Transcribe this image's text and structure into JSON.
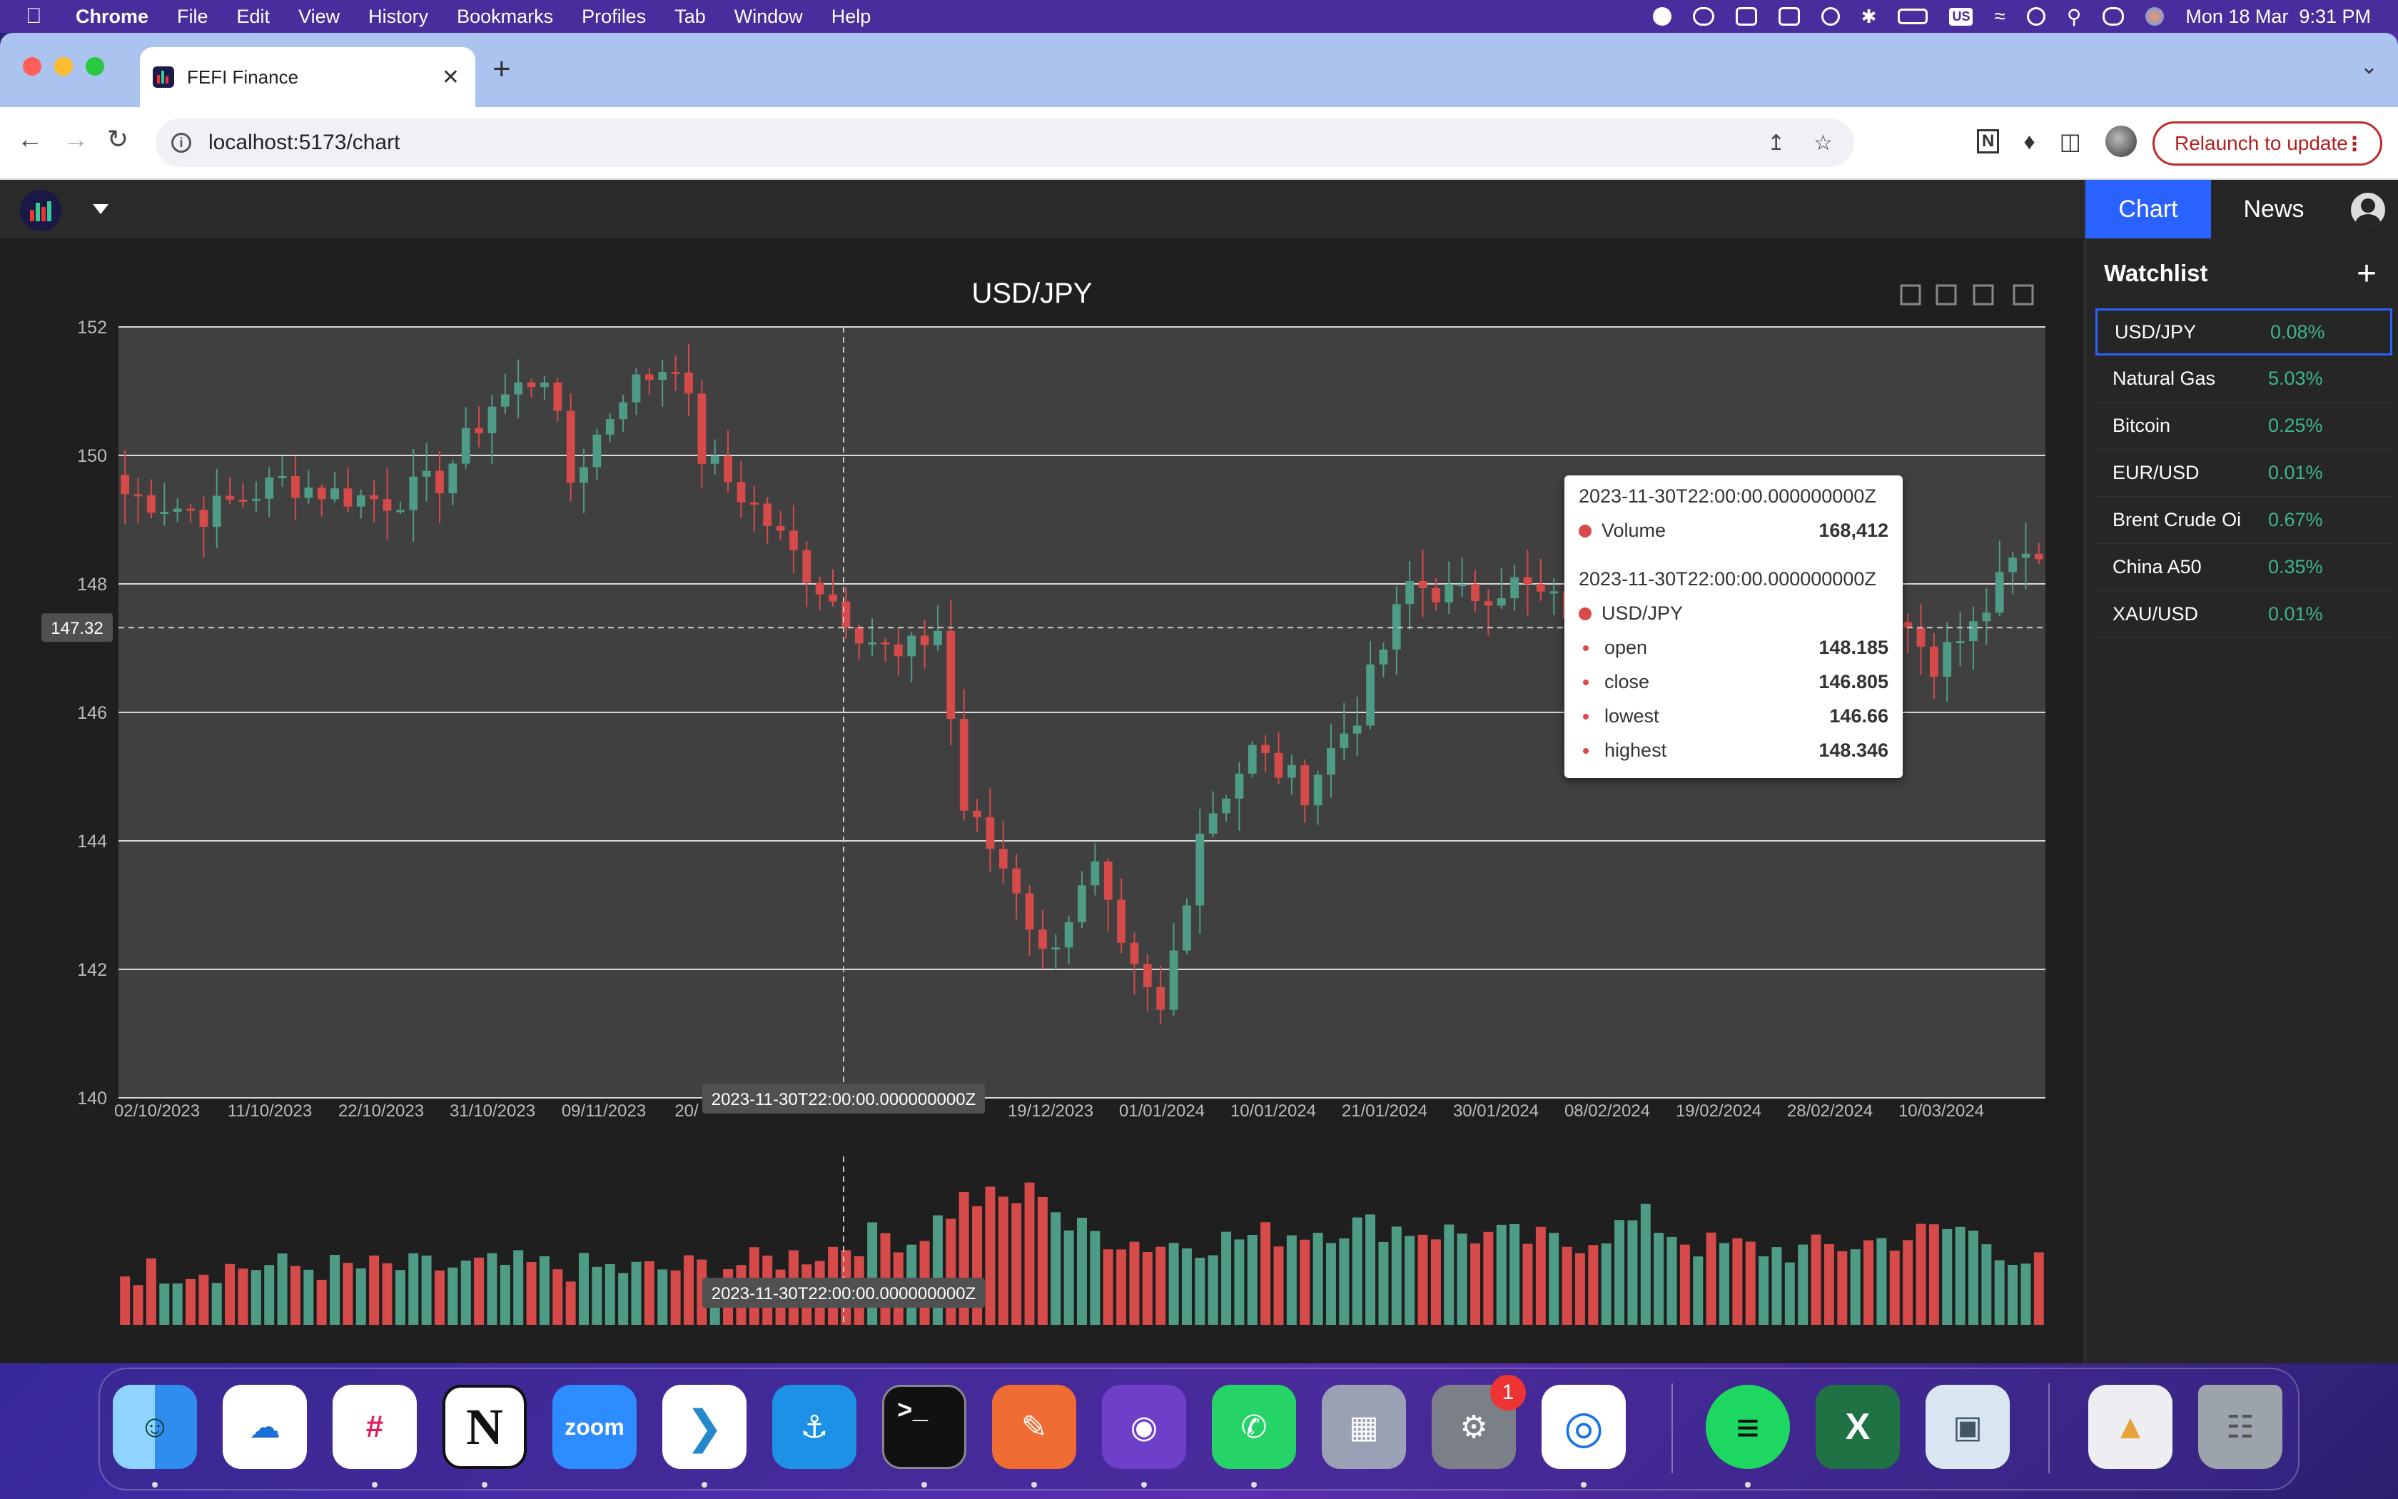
{
  "menubar": {
    "app": "Chrome",
    "items": [
      "File",
      "Edit",
      "View",
      "History",
      "Bookmarks",
      "Profiles",
      "Tab",
      "Window",
      "Help"
    ],
    "datetime": "Mon 18 Mar  9:31 PM",
    "input_source": "US"
  },
  "browser": {
    "tab_title": "FEFI Finance",
    "url": "localhost:5173/chart",
    "relaunch_label": "Relaunch to update"
  },
  "app": {
    "tabs": [
      {
        "label": "Chart",
        "active": true
      },
      {
        "label": "News",
        "active": false
      }
    ],
    "watchlist": {
      "title": "Watchlist",
      "add_label": "+",
      "items": [
        {
          "name": "USD/JPY",
          "change": "0.08%",
          "selected": true
        },
        {
          "name": "Natural Gas",
          "change": "5.03%"
        },
        {
          "name": "Bitcoin",
          "change": "0.25%"
        },
        {
          "name": "EUR/USD",
          "change": "0.01%"
        },
        {
          "name": "Brent Crude Oi",
          "change": "0.67%"
        },
        {
          "name": "China A50",
          "change": "0.35%"
        },
        {
          "name": "XAU/USD",
          "change": "0.01%"
        }
      ]
    }
  },
  "tooltip": {
    "timestamp": "2023-11-30T22:00:00.000000000Z",
    "volume_label": "Volume",
    "volume_value": "168,412",
    "series_name": "USD/JPY",
    "fields": [
      {
        "label": "open",
        "value": "148.185"
      },
      {
        "label": "close",
        "value": "146.805"
      },
      {
        "label": "lowest",
        "value": "146.66"
      },
      {
        "label": "highest",
        "value": "148.346"
      }
    ]
  },
  "chart_data": {
    "type": "candlestick",
    "title": "USD/JPY",
    "ylim": [
      140,
      152
    ],
    "y_ticks": [
      "152",
      "150",
      "148",
      "146",
      "144",
      "142",
      "140"
    ],
    "x_ticks": [
      "02/10/2023",
      "11/10/2023",
      "22/10/2023",
      "31/10/2023",
      "09/11/2023",
      "20/",
      "2023-11-30T22:00:00.000000000Z",
      "19/12/2023",
      "01/01/2024",
      "10/01/2024",
      "21/01/2024",
      "30/01/2024",
      "08/02/2024",
      "19/02/2024",
      "28/02/2024",
      "10/03/2024"
    ],
    "crosshair": {
      "x_label": "2023-11-30T22:00:00.000000000Z",
      "y_label": "147.32",
      "y_value": 147.32
    },
    "colors": {
      "up": "#4f9c86",
      "down": "#d64a4a",
      "grid": "#d8d8d8",
      "plot_bg": "#404040"
    },
    "close_anchors": [
      [
        0,
        149.4
      ],
      [
        6,
        149.1
      ],
      [
        12,
        149.6
      ],
      [
        16,
        149.4
      ],
      [
        20,
        149.3
      ],
      [
        24,
        149.6
      ],
      [
        28,
        150.8
      ],
      [
        32,
        151.3
      ],
      [
        34,
        149.6
      ],
      [
        38,
        151.0
      ],
      [
        42,
        151.5
      ],
      [
        44,
        150.0
      ],
      [
        48,
        149.2
      ],
      [
        52,
        148.2
      ],
      [
        56,
        147.3
      ],
      [
        59,
        146.8
      ],
      [
        62,
        147.3
      ],
      [
        64,
        144.5
      ],
      [
        68,
        143.3
      ],
      [
        70,
        142.2
      ],
      [
        74,
        143.5
      ],
      [
        76,
        142.2
      ],
      [
        79,
        141.3
      ],
      [
        82,
        144.2
      ],
      [
        86,
        145.4
      ],
      [
        90,
        144.8
      ],
      [
        94,
        146.0
      ],
      [
        98,
        148.0
      ],
      [
        102,
        147.8
      ],
      [
        106,
        148.0
      ],
      [
        110,
        147.6
      ],
      [
        112,
        146.4
      ],
      [
        115,
        146.8
      ],
      [
        118,
        148.1
      ],
      [
        122,
        148.3
      ],
      [
        124,
        147.5
      ],
      [
        126,
        148.5
      ],
      [
        128,
        148.6
      ],
      [
        130,
        148.0
      ],
      [
        135,
        147.6
      ],
      [
        138,
        146.8
      ],
      [
        141,
        147.3
      ],
      [
        144,
        148.3
      ],
      [
        146,
        148.5
      ]
    ],
    "volume_anchors": [
      [
        0,
        0.36
      ],
      [
        10,
        0.4
      ],
      [
        20,
        0.38
      ],
      [
        30,
        0.4
      ],
      [
        40,
        0.37
      ],
      [
        48,
        0.42
      ],
      [
        53,
        0.5
      ],
      [
        58,
        0.62
      ],
      [
        60,
        0.57
      ],
      [
        64,
        0.85
      ],
      [
        68,
        0.85
      ],
      [
        70,
        0.94
      ],
      [
        72,
        0.66
      ],
      [
        78,
        0.55
      ],
      [
        82,
        0.56
      ],
      [
        88,
        0.62
      ],
      [
        94,
        0.68
      ],
      [
        100,
        0.64
      ],
      [
        110,
        0.55
      ],
      [
        116,
        0.72
      ],
      [
        120,
        0.54
      ],
      [
        128,
        0.5
      ],
      [
        136,
        0.6
      ],
      [
        140,
        0.66
      ],
      [
        146,
        0.4
      ]
    ]
  },
  "dock": {
    "apps": [
      "Finder",
      "OneDrive",
      "Slack",
      "Notion",
      "Zoom",
      "VS Code",
      "Docker",
      "Terminal",
      "Postman",
      "GitHub Desktop",
      "WhatsApp",
      "Launchpad",
      "System Settings",
      "Chrome",
      "Spotify",
      "Excel",
      "Preview",
      "Chart File",
      "Trash"
    ],
    "labels": {
      "notion": "N",
      "zoom": "zoom",
      "terminal": ">_",
      "excel": "X"
    },
    "settings_badge": "1"
  }
}
